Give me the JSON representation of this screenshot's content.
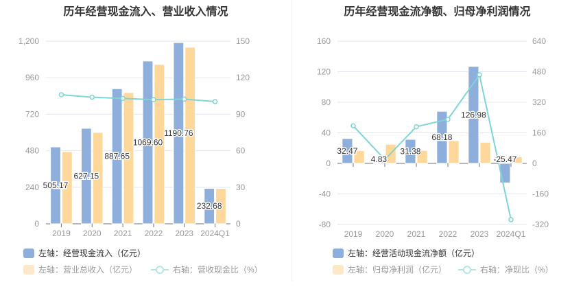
{
  "colors": {
    "blue": "#8eaedb",
    "orange": "#fed89a",
    "orange_legend": "#fde9c8",
    "line": "#7fd4d6",
    "grid": "#e0e6f1",
    "axis": "#999"
  },
  "chart_data": [
    {
      "type": "bar",
      "title": "历年经营现金流入、营业收入情况",
      "categories": [
        "2019",
        "2020",
        "2021",
        "2022",
        "2023",
        "2024Q1"
      ],
      "left_axis": {
        "min": 0,
        "max": 1200,
        "ticks": [
          "0",
          "240",
          "480",
          "720",
          "960",
          "1,200"
        ]
      },
      "right_axis": {
        "min": 0,
        "max": 150,
        "ticks": [
          "0",
          "30",
          "60",
          "90",
          "120",
          "150"
        ]
      },
      "series": [
        {
          "name": "左轴：经营现金流入（亿元）",
          "axis": "left",
          "kind": "bar",
          "values": [
            505.17,
            627.15,
            887.65,
            1069.6,
            1190.76,
            232.68
          ],
          "labels": [
            "505.17",
            "627.15",
            "887.65",
            "1069.60",
            "1190.76",
            "232.68"
          ]
        },
        {
          "name": "左轴：营业总收入（亿元）",
          "axis": "left",
          "kind": "bar",
          "values": [
            474,
            600,
            862,
            1047,
            1160,
            232
          ]
        },
        {
          "name": "右轴：营收现金比（%）",
          "axis": "right",
          "kind": "line",
          "values": [
            106,
            104,
            103,
            102,
            102.4,
            100.4
          ]
        }
      ],
      "legend": "bottom-left"
    },
    {
      "type": "bar",
      "title": "历年经营现金流净额、归母净利润情况",
      "categories": [
        "2019",
        "2020",
        "2021",
        "2022",
        "2023",
        "2024Q1"
      ],
      "left_axis": {
        "min": -80,
        "max": 160,
        "ticks": [
          "-80",
          "-40",
          "0",
          "40",
          "80",
          "120",
          "160"
        ]
      },
      "right_axis": {
        "min": -320,
        "max": 640,
        "ticks": [
          "-320",
          "-160",
          "0",
          "160",
          "320",
          "480",
          "640"
        ]
      },
      "series": [
        {
          "name": "左轴：经营活动现金流净额（亿元）",
          "axis": "left",
          "kind": "bar",
          "values": [
            32.47,
            4.83,
            31.38,
            68.18,
            126.98,
            -25.47
          ],
          "labels": [
            "32.47",
            "4.83",
            "31.38",
            "68.18",
            "126.98",
            "-25.47"
          ]
        },
        {
          "name": "左轴：归母净利润（亿元）",
          "axis": "left",
          "kind": "bar",
          "values": [
            16.8,
            25,
            17,
            29.7,
            27.6,
            8.7
          ]
        },
        {
          "name": "右轴：净现比（%）",
          "axis": "right",
          "kind": "line",
          "values": [
            197,
            20,
            192,
            231,
            464,
            -295
          ]
        }
      ],
      "legend": "bottom-left"
    }
  ]
}
